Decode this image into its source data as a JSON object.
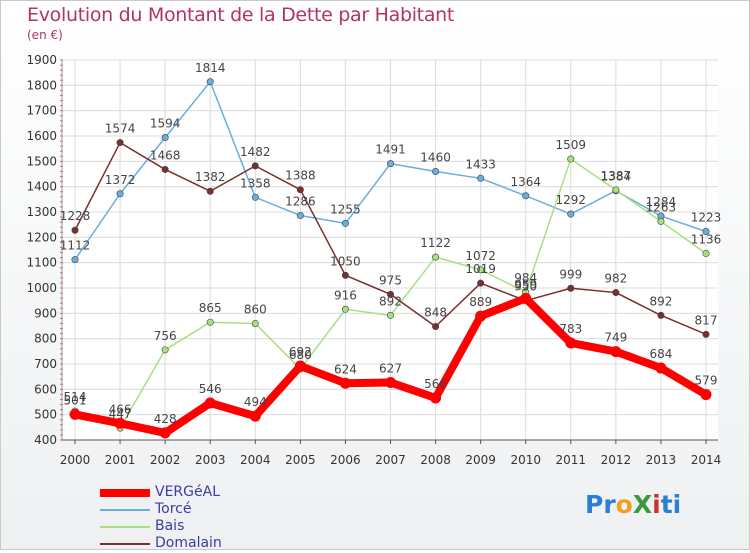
{
  "title": "Evolution du Montant de la Dette par Habitant",
  "subtitle": "(en €)",
  "logo": {
    "text": "ProXiti",
    "letters": [
      "P",
      "r",
      "o",
      "X",
      "i",
      "t",
      "i"
    ],
    "colors": [
      "#2a7fd4",
      "#2a7fd4",
      "#f0a020",
      "#3a9a3a",
      "#d03030",
      "#2a7fd4",
      "#2a7fd4"
    ]
  },
  "chart_data": {
    "type": "line",
    "title": "Evolution du Montant de la Dette par Habitant",
    "subtitle": "(en €)",
    "x": [
      "2000",
      "2001",
      "2002",
      "2003",
      "2004",
      "2005",
      "2006",
      "2007",
      "2008",
      "2009",
      "2010",
      "2011",
      "2012",
      "2013",
      "2014"
    ],
    "ylim": [
      400,
      1900
    ],
    "yticks": [
      400,
      500,
      600,
      700,
      800,
      900,
      1000,
      1100,
      1200,
      1300,
      1400,
      1500,
      1600,
      1700,
      1800,
      1900
    ],
    "grid": true,
    "legend_position": "bottom-left",
    "series": [
      {
        "name": "VERGéAL",
        "color": "#ff0000",
        "values": [
          501,
          466,
          428,
          546,
          494,
          692,
          624,
          627,
          566,
          889,
          959,
          783,
          749,
          684,
          579
        ]
      },
      {
        "name": "Torcé",
        "color": "#6aaee0",
        "values": [
          1112,
          1372,
          1594,
          1814,
          1358,
          1286,
          1255,
          1491,
          1460,
          1433,
          1364,
          1292,
          1384,
          1284,
          1223
        ]
      },
      {
        "name": "Bais",
        "color": "#a8e080",
        "values": [
          514,
          447,
          756,
          865,
          860,
          680,
          916,
          892,
          1122,
          1072,
          984,
          1509,
          1387,
          1263,
          1136
        ]
      },
      {
        "name": "Domalain",
        "color": "#7a2e2e",
        "values": [
          1228,
          1574,
          1468,
          1382,
          1482,
          1388,
          1050,
          975,
          848,
          1019,
          950,
          999,
          982,
          892,
          817
        ]
      }
    ]
  }
}
